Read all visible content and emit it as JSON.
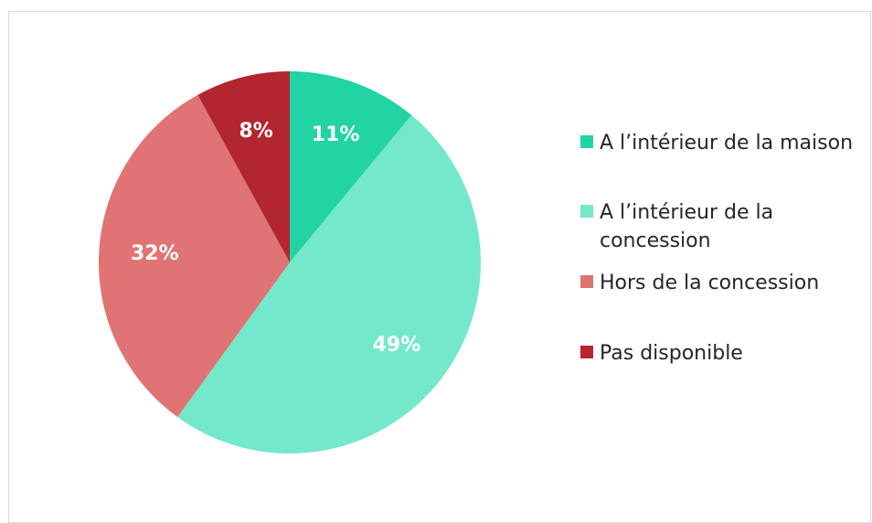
{
  "chart_data": {
    "type": "pie",
    "title": "",
    "slices": [
      {
        "label": "A l’intérieur de la maison",
        "value": 11,
        "display": "11%",
        "color": "#22D3A3"
      },
      {
        "label": "A l’intérieur de la concession",
        "value": 49,
        "display": "49%",
        "color": "#74E8CA"
      },
      {
        "label": "Hors de la concession",
        "value": 32,
        "display": "32%",
        "color": "#E07374"
      },
      {
        "label": "Pas disponible",
        "value": 8,
        "display": "8%",
        "color": "#B3262F"
      }
    ],
    "legend_position": "right",
    "start_angle": "top",
    "direction": "clockwise"
  }
}
